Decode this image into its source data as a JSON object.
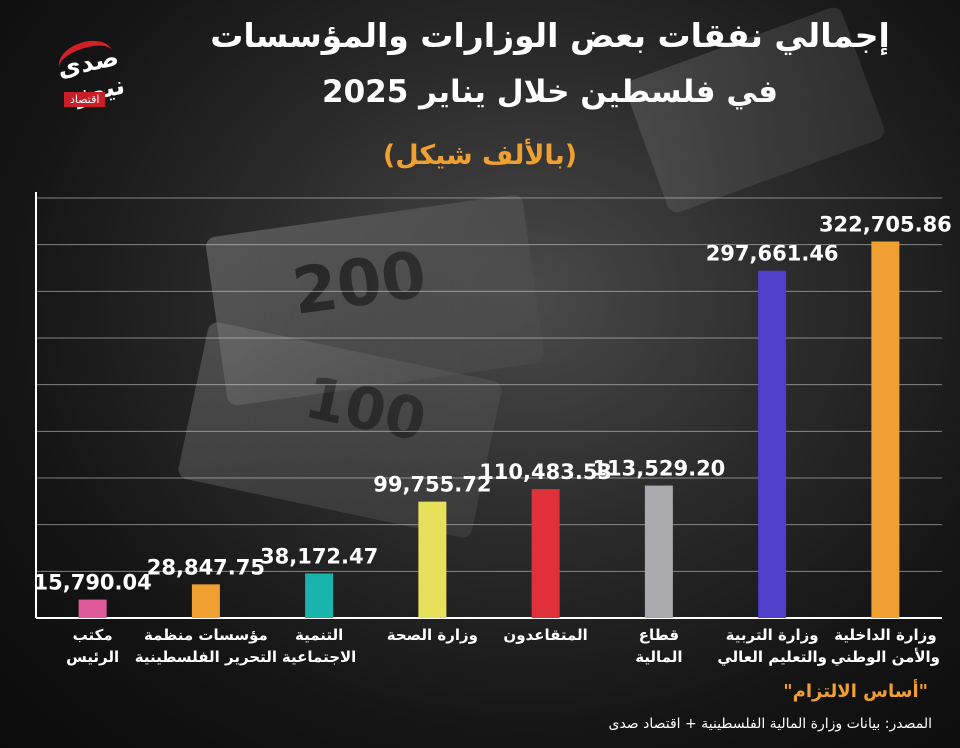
{
  "title": {
    "line1": "إجمالي نفقات بعض الوزارات والمؤسسات",
    "line2": "في فلسطين خلال يناير 2025",
    "unit": "(بالألف شيكل)"
  },
  "logo": {
    "brand": "صدى نيوز",
    "sub": "اقتصاد"
  },
  "footer": {
    "highlight": "\"أساس الالتزام\"",
    "source": "المصدر: بيانات وزارة المالية الفلسطينية + اقتصاد صدى"
  },
  "background_text": {
    "bill_200": "200",
    "bill_100": "100"
  },
  "chart_data": {
    "type": "bar",
    "categories": [
      [
        "مكتب",
        "الرئيس"
      ],
      [
        "مؤسسات منظمة",
        "التحرير الفلسطينية"
      ],
      [
        "التنمية",
        "الاجتماعية"
      ],
      [
        "وزارة الصحة"
      ],
      [
        "المتقاعدون"
      ],
      [
        "قطاع",
        "المالية"
      ],
      [
        "وزارة التربية",
        "والتعليم العالي"
      ],
      [
        "وزارة الداخلية",
        "والأمن الوطني"
      ]
    ],
    "values": [
      15790.04,
      28847.75,
      38172.47,
      99755.72,
      110483.53,
      113529.2,
      297661.46,
      322705.86
    ],
    "labels": [
      "15,790.04",
      "28,847.75",
      "38,172.47",
      "99,755.72",
      "110,483.53",
      "113,529.20",
      "297,661.46",
      "322,705.86"
    ],
    "colors": [
      "#e0599a",
      "#f0a030",
      "#1bb3ad",
      "#e6e05a",
      "#e0303a",
      "#a9a9ae",
      "#4f3fc9",
      "#f0a030"
    ],
    "ylim": [
      0,
      360000
    ],
    "grid": true
  }
}
